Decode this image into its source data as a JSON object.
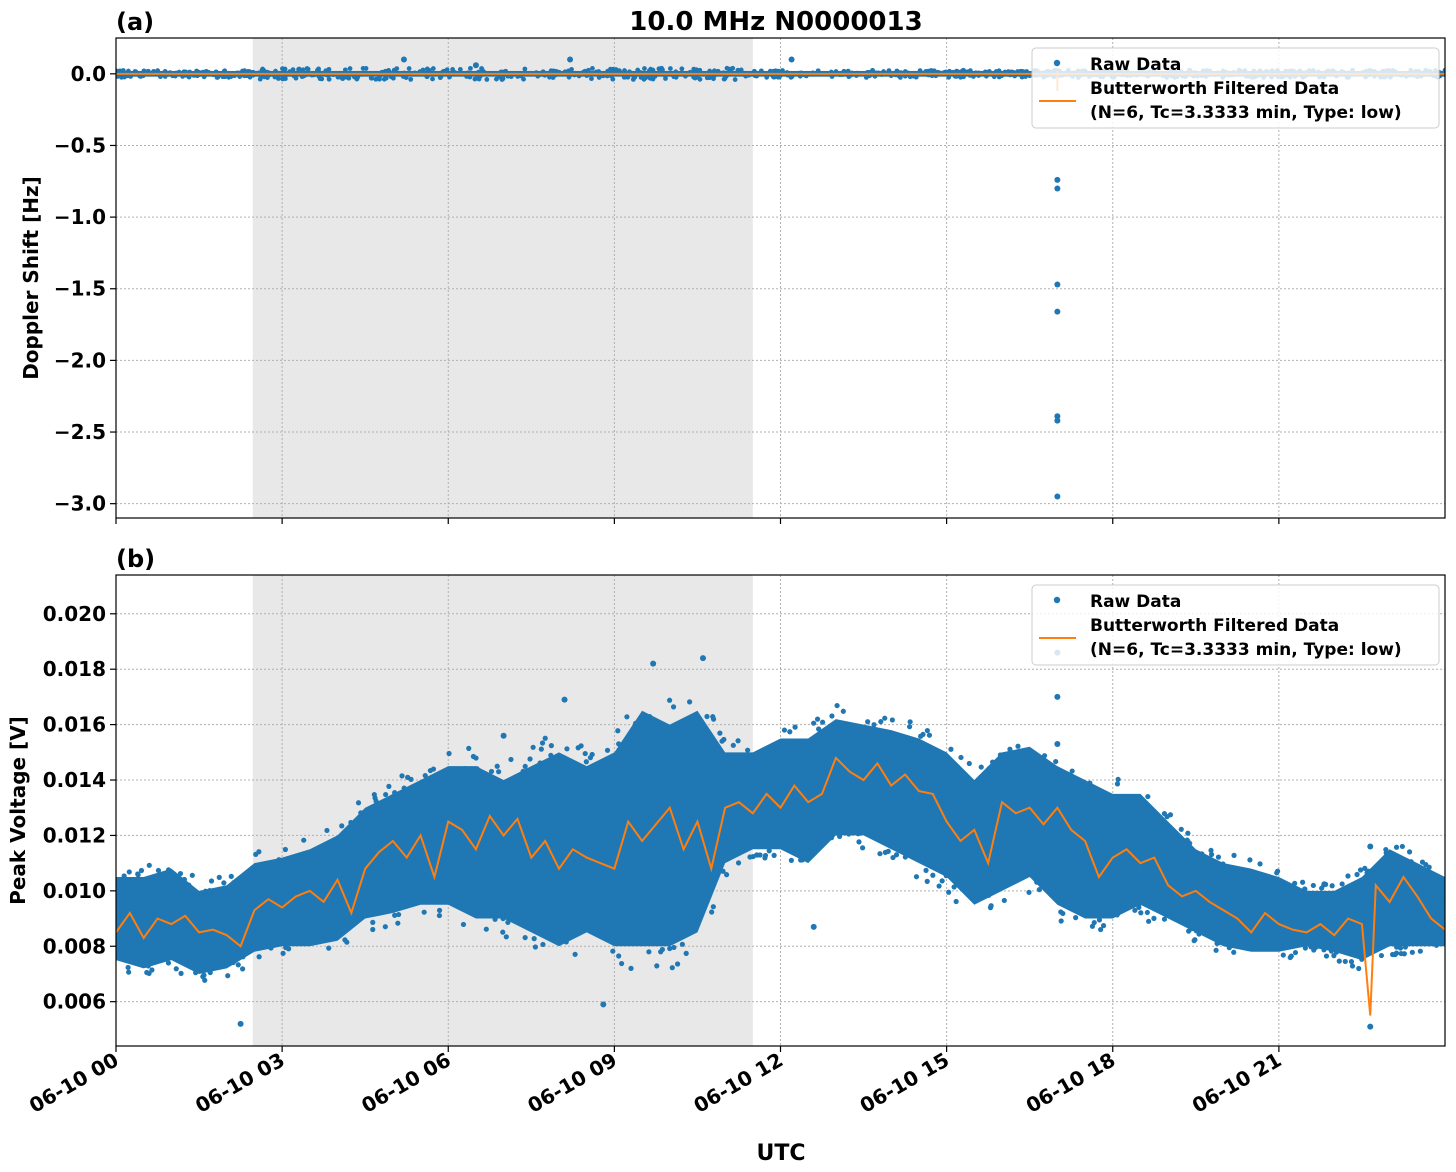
{
  "figure": {
    "title": "10.0 MHz N0000013",
    "xlabel": "UTC"
  },
  "colors": {
    "raw": "#1f77b4",
    "filtered": "#ff7f0e",
    "shade": "#e8e8e8",
    "grid": "#b0b0b0"
  },
  "chart_data": [
    {
      "type": "scatter",
      "panel_label": "(a)",
      "ylabel": "Doppler Shift [Hz]",
      "xlim_hours": [
        0,
        24
      ],
      "ylim": [
        -3.1,
        0.25
      ],
      "yticks": [
        0.0,
        -0.5,
        -1.0,
        -1.5,
        -2.0,
        -2.5,
        -3.0
      ],
      "ytick_labels": [
        "0.0",
        "−0.5",
        "−1.0",
        "−1.5",
        "−2.0",
        "−2.5",
        "−3.0"
      ],
      "grid": true,
      "shaded_interval_hours": [
        2.47,
        11.5
      ],
      "legend": {
        "placement": "top-right",
        "entries": [
          "Raw Data",
          "Butterworth Filtered Data",
          "(N=6, Tc=3.3333 min, Type: low)"
        ]
      },
      "series": [
        {
          "name": "Raw Data",
          "style": "points",
          "baseline": 0.0,
          "spread": 0.02,
          "spikes": [
            [
              5.2,
              0.1
            ],
            [
              8.2,
              0.1
            ],
            [
              6.5,
              0.06
            ],
            [
              12.2,
              0.1
            ],
            [
              17.0,
              -0.74
            ],
            [
              17.0,
              -0.8
            ],
            [
              17.0,
              -1.47
            ],
            [
              17.0,
              -1.66
            ],
            [
              17.0,
              -2.39
            ],
            [
              17.0,
              -2.42
            ],
            [
              17.0,
              -2.95
            ]
          ]
        },
        {
          "name": "Butterworth Filtered Data",
          "style": "line",
          "values_hours": [
            [
              0,
              0.0
            ],
            [
              24,
              0.0
            ]
          ]
        }
      ]
    },
    {
      "type": "scatter",
      "panel_label": "(b)",
      "ylabel": "Peak Voltage [V]",
      "xlim_hours": [
        0,
        24
      ],
      "ylim": [
        0.0044,
        0.0214
      ],
      "yticks": [
        0.006,
        0.008,
        0.01,
        0.012,
        0.014,
        0.016,
        0.018,
        0.02
      ],
      "ytick_labels": [
        "0.006",
        "0.008",
        "0.010",
        "0.012",
        "0.014",
        "0.016",
        "0.018",
        "0.020"
      ],
      "grid": true,
      "shaded_interval_hours": [
        2.47,
        11.5
      ],
      "xticks_hours": [
        0,
        3,
        6,
        9,
        12,
        15,
        18,
        21
      ],
      "xtick_labels": [
        "06-10 00",
        "06-10 03",
        "06-10 06",
        "06-10 09",
        "06-10 12",
        "06-10 15",
        "06-10 18",
        "06-10 21"
      ],
      "legend": {
        "placement": "top-right",
        "entries": [
          "Raw Data",
          "Butterworth Filtered Data",
          "(N=6, Tc=3.3333 min, Type: low)"
        ]
      },
      "series": [
        {
          "name": "Raw Data",
          "style": "band",
          "x_hours": [
            0,
            0.5,
            1,
            1.5,
            2,
            2.5,
            3,
            3.5,
            4,
            4.5,
            5,
            5.5,
            6,
            6.5,
            7,
            7.5,
            8,
            8.5,
            9,
            9.5,
            10,
            10.5,
            11,
            11.5,
            12,
            12.5,
            13,
            13.5,
            14,
            14.5,
            15,
            15.5,
            16,
            16.5,
            17,
            17.5,
            18,
            18.5,
            19,
            19.5,
            20,
            20.5,
            21,
            21.5,
            22,
            22.5,
            23,
            23.5,
            24
          ],
          "low": [
            0.0075,
            0.0072,
            0.0075,
            0.007,
            0.0072,
            0.0078,
            0.008,
            0.008,
            0.0082,
            0.009,
            0.0092,
            0.0095,
            0.0095,
            0.009,
            0.009,
            0.0085,
            0.008,
            0.0085,
            0.008,
            0.008,
            0.008,
            0.0085,
            0.011,
            0.0115,
            0.0115,
            0.011,
            0.012,
            0.012,
            0.0115,
            0.011,
            0.0105,
            0.0095,
            0.01,
            0.0105,
            0.0095,
            0.009,
            0.009,
            0.0095,
            0.009,
            0.0085,
            0.008,
            0.0078,
            0.0078,
            0.008,
            0.0078,
            0.0075,
            0.008,
            0.008,
            0.008
          ],
          "high": [
            0.0105,
            0.0105,
            0.0108,
            0.01,
            0.0102,
            0.011,
            0.0112,
            0.0115,
            0.012,
            0.013,
            0.0135,
            0.014,
            0.0145,
            0.0145,
            0.014,
            0.0145,
            0.015,
            0.0145,
            0.015,
            0.0165,
            0.016,
            0.0165,
            0.015,
            0.015,
            0.0155,
            0.0155,
            0.0162,
            0.016,
            0.0158,
            0.0155,
            0.015,
            0.014,
            0.015,
            0.0152,
            0.0145,
            0.014,
            0.0135,
            0.0135,
            0.0125,
            0.0115,
            0.011,
            0.0108,
            0.0105,
            0.01,
            0.01,
            0.0105,
            0.0115,
            0.011,
            0.0105
          ],
          "outliers": [
            [
              10.6,
              0.0184
            ],
            [
              9.7,
              0.0182
            ],
            [
              8.1,
              0.0169
            ],
            [
              7.0,
              0.0156
            ],
            [
              8.8,
              0.0059
            ],
            [
              17.0,
              0.0205
            ],
            [
              17.0,
              0.0186
            ],
            [
              17.0,
              0.017
            ],
            [
              17.0,
              0.0153
            ],
            [
              2.25,
              0.0052
            ],
            [
              22.65,
              0.0051
            ],
            [
              22.65,
              0.0116
            ],
            [
              12.6,
              0.0087
            ]
          ]
        },
        {
          "name": "Butterworth Filtered Data",
          "style": "line",
          "x_hours": [
            0,
            0.25,
            0.5,
            0.75,
            1,
            1.25,
            1.5,
            1.75,
            2,
            2.25,
            2.5,
            2.75,
            3,
            3.25,
            3.5,
            3.75,
            4,
            4.25,
            4.5,
            4.75,
            5,
            5.25,
            5.5,
            5.75,
            6,
            6.25,
            6.5,
            6.75,
            7,
            7.25,
            7.5,
            7.75,
            8,
            8.25,
            8.5,
            8.75,
            9,
            9.25,
            9.5,
            9.75,
            10,
            10.25,
            10.5,
            10.75,
            11,
            11.25,
            11.5,
            11.75,
            12,
            12.25,
            12.5,
            12.75,
            13,
            13.25,
            13.5,
            13.75,
            14,
            14.25,
            14.5,
            14.75,
            15,
            15.25,
            15.5,
            15.75,
            16,
            16.25,
            16.5,
            16.75,
            17,
            17.25,
            17.5,
            17.75,
            18,
            18.25,
            18.5,
            18.75,
            19,
            19.25,
            19.5,
            19.75,
            20,
            20.25,
            20.5,
            20.75,
            21,
            21.25,
            21.5,
            21.75,
            22,
            22.25,
            22.5,
            22.65,
            22.75,
            23,
            23.25,
            23.5,
            23.75,
            24
          ],
          "values": [
            0.0085,
            0.0092,
            0.0083,
            0.009,
            0.0088,
            0.0091,
            0.0085,
            0.0086,
            0.0084,
            0.008,
            0.0093,
            0.0097,
            0.0094,
            0.0098,
            0.01,
            0.0096,
            0.0104,
            0.0092,
            0.0108,
            0.0114,
            0.0118,
            0.0112,
            0.012,
            0.0105,
            0.0125,
            0.0122,
            0.0115,
            0.0127,
            0.012,
            0.0126,
            0.0112,
            0.0118,
            0.0108,
            0.0115,
            0.0112,
            0.011,
            0.0108,
            0.0125,
            0.0118,
            0.0124,
            0.013,
            0.0115,
            0.0125,
            0.0108,
            0.013,
            0.0132,
            0.0128,
            0.0135,
            0.013,
            0.0138,
            0.0132,
            0.0135,
            0.0148,
            0.0143,
            0.014,
            0.0146,
            0.0138,
            0.0142,
            0.0136,
            0.0135,
            0.0125,
            0.0118,
            0.0122,
            0.011,
            0.0132,
            0.0128,
            0.013,
            0.0124,
            0.013,
            0.0122,
            0.0118,
            0.0105,
            0.0112,
            0.0115,
            0.011,
            0.0112,
            0.0102,
            0.0098,
            0.01,
            0.0096,
            0.0093,
            0.009,
            0.0085,
            0.0092,
            0.0088,
            0.0086,
            0.0085,
            0.0088,
            0.0084,
            0.009,
            0.0088,
            0.0055,
            0.0102,
            0.0096,
            0.0105,
            0.0098,
            0.009,
            0.0086
          ]
        }
      ]
    }
  ]
}
